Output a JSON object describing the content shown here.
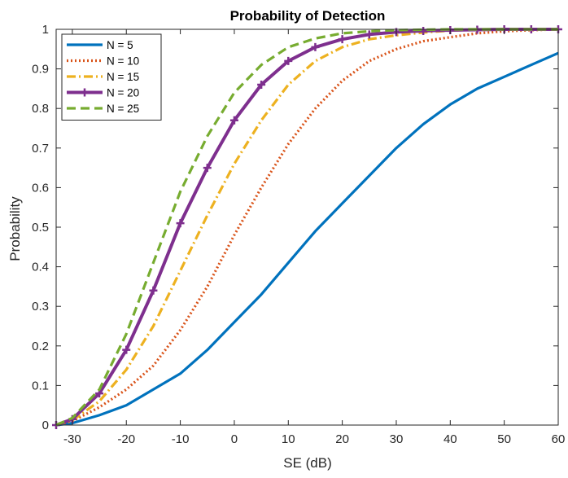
{
  "chart_data": {
    "type": "line",
    "title": "Probability of Detection",
    "xlabel": "SE (dB)",
    "ylabel": "Probability",
    "xlim": [
      -33,
      60
    ],
    "ylim": [
      0,
      1
    ],
    "xticks": [
      -30,
      -20,
      -10,
      0,
      10,
      20,
      30,
      40,
      50,
      60
    ],
    "xtick_labels": [
      "-30",
      "-20",
      "-10",
      "0",
      "10",
      "20",
      "30",
      "40",
      "50",
      "60"
    ],
    "yticks": [
      0,
      0.1,
      0.2,
      0.3,
      0.4,
      0.5,
      0.6,
      0.7,
      0.8,
      0.9,
      1
    ],
    "ytick_labels": [
      "0",
      "0.1",
      "0.2",
      "0.3",
      "0.4",
      "0.5",
      "0.6",
      "0.7",
      "0.8",
      "0.9",
      "1"
    ],
    "grid": false,
    "legend_position": "top-left",
    "x": [
      -33,
      -30,
      -25,
      -20,
      -15,
      -10,
      -5,
      0,
      5,
      10,
      15,
      20,
      25,
      30,
      35,
      40,
      45,
      50,
      55,
      60
    ],
    "series": [
      {
        "name": "N = 5",
        "color": "#0072BD",
        "style": "solid",
        "marker": "none",
        "values": [
          0.0,
          0.005,
          0.025,
          0.05,
          0.09,
          0.13,
          0.19,
          0.26,
          0.33,
          0.41,
          0.49,
          0.56,
          0.63,
          0.7,
          0.76,
          0.81,
          0.85,
          0.88,
          0.91,
          0.94
        ]
      },
      {
        "name": "N = 10",
        "color": "#D95319",
        "style": "dotted",
        "marker": "none",
        "values": [
          0.0,
          0.01,
          0.045,
          0.09,
          0.15,
          0.24,
          0.35,
          0.48,
          0.6,
          0.71,
          0.8,
          0.87,
          0.92,
          0.95,
          0.97,
          0.98,
          0.99,
          0.995,
          0.998,
          1.0
        ]
      },
      {
        "name": "N = 15",
        "color": "#EDB120",
        "style": "dashdot",
        "marker": "none",
        "values": [
          0.0,
          0.012,
          0.06,
          0.14,
          0.25,
          0.39,
          0.53,
          0.66,
          0.77,
          0.86,
          0.92,
          0.955,
          0.975,
          0.985,
          0.992,
          0.997,
          0.999,
          1.0,
          1.0,
          1.0
        ]
      },
      {
        "name": "N = 20",
        "color": "#7E2F8E",
        "style": "solid",
        "marker": "plus",
        "values": [
          0.0,
          0.015,
          0.08,
          0.19,
          0.34,
          0.51,
          0.65,
          0.77,
          0.86,
          0.92,
          0.955,
          0.975,
          0.987,
          0.993,
          0.996,
          0.998,
          0.999,
          1.0,
          1.0,
          1.0
        ]
      },
      {
        "name": "N = 25",
        "color": "#77AC30",
        "style": "dashed",
        "marker": "none",
        "values": [
          0.0,
          0.018,
          0.09,
          0.23,
          0.41,
          0.59,
          0.73,
          0.84,
          0.91,
          0.955,
          0.977,
          0.99,
          0.995,
          0.998,
          0.999,
          1.0,
          1.0,
          1.0,
          1.0,
          1.0
        ]
      }
    ]
  }
}
